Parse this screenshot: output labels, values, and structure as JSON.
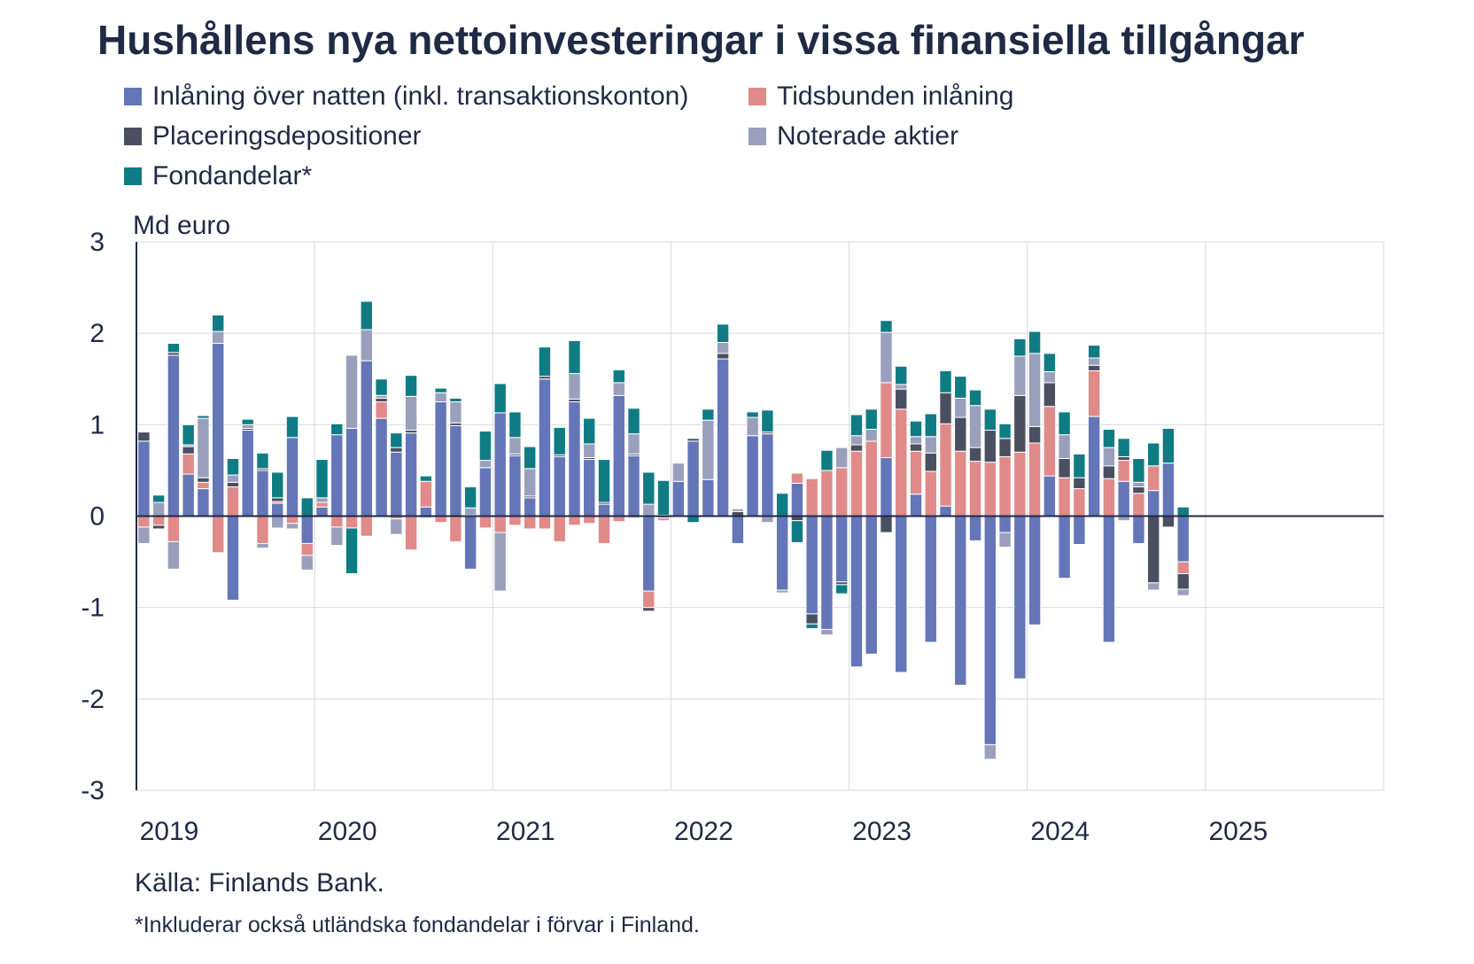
{
  "chart_data": {
    "type": "bar",
    "stacked": true,
    "title": "Hushållens nya nettoinvesteringar i vissa finansiella tillgångar",
    "ylabel": "Md euro",
    "ylim": [
      -3,
      3
    ],
    "yticks": [
      -3,
      -2,
      -1,
      0,
      1,
      2,
      3
    ],
    "xlim": [
      2019,
      2026
    ],
    "xticks": [
      "2019",
      "2020",
      "2021",
      "2022",
      "2023",
      "2024",
      "2025"
    ],
    "grid": true,
    "legend_position": "top",
    "source": "Källa: Finlands Bank.",
    "footnote": "*Inkluderar också utländska fondandelar i förvar i Finland.",
    "series": [
      {
        "name": "Inlåning över natten (inkl. transaktionskonton)",
        "color": "#6476b8"
      },
      {
        "name": "Tidsbunden inlåning",
        "color": "#e08a8a"
      },
      {
        "name": "Placeringsdepositioner",
        "color": "#4a5060"
      },
      {
        "name": "Noterade aktier",
        "color": "#9aa0bc"
      },
      {
        "name": "Fondandelar*",
        "color": "#0f7c84"
      }
    ],
    "x": [
      "2019-01",
      "2019-02",
      "2019-03",
      "2019-04",
      "2019-05",
      "2019-06",
      "2019-07",
      "2019-08",
      "2019-09",
      "2019-10",
      "2019-11",
      "2019-12",
      "2020-01",
      "2020-02",
      "2020-03",
      "2020-04",
      "2020-05",
      "2020-06",
      "2020-07",
      "2020-08",
      "2020-09",
      "2020-10",
      "2020-11",
      "2020-12",
      "2021-01",
      "2021-02",
      "2021-03",
      "2021-04",
      "2021-05",
      "2021-06",
      "2021-07",
      "2021-08",
      "2021-09",
      "2021-10",
      "2021-11",
      "2021-12",
      "2022-01",
      "2022-02",
      "2022-03",
      "2022-04",
      "2022-05",
      "2022-06",
      "2022-07",
      "2022-08",
      "2022-09",
      "2022-10",
      "2022-11",
      "2022-12",
      "2023-01",
      "2023-02",
      "2023-03",
      "2023-04",
      "2023-05",
      "2023-06",
      "2023-07",
      "2023-08",
      "2023-09",
      "2023-10",
      "2023-11",
      "2023-12",
      "2024-01",
      "2024-02",
      "2024-03",
      "2024-04",
      "2024-05",
      "2024-06",
      "2024-07",
      "2024-08",
      "2024-09",
      "2024-10",
      "2024-11",
      "2024-12"
    ],
    "values": [
      [
        0.82,
        -0.12,
        0.1,
        -0.18,
        0.0
      ],
      [
        0.0,
        -0.1,
        -0.04,
        0.15,
        0.08
      ],
      [
        1.76,
        -0.28,
        0.03,
        -0.3,
        0.1
      ],
      [
        0.46,
        0.22,
        0.08,
        0.02,
        0.22
      ],
      [
        0.3,
        0.07,
        0.05,
        0.65,
        0.03
      ],
      [
        1.89,
        -0.4,
        0.0,
        0.13,
        0.18
      ],
      [
        -0.92,
        0.32,
        0.05,
        0.08,
        0.18
      ],
      [
        0.94,
        0.0,
        0.02,
        0.04,
        0.06
      ],
      [
        0.5,
        -0.3,
        0.02,
        -0.05,
        0.17
      ],
      [
        0.14,
        0.02,
        0.04,
        -0.13,
        0.28
      ],
      [
        0.86,
        -0.08,
        0.0,
        -0.06,
        0.23
      ],
      [
        -0.3,
        -0.13,
        0.0,
        -0.16,
        0.2
      ],
      [
        0.1,
        0.05,
        0.0,
        0.05,
        0.42
      ],
      [
        0.89,
        -0.12,
        0.0,
        -0.2,
        0.12
      ],
      [
        0.96,
        -0.13,
        0.0,
        0.8,
        -0.5
      ],
      [
        1.7,
        -0.22,
        0.0,
        0.34,
        0.31
      ],
      [
        1.07,
        0.18,
        0.04,
        0.03,
        0.18
      ],
      [
        0.7,
        -0.03,
        0.05,
        -0.17,
        0.16
      ],
      [
        0.91,
        -0.37,
        0.03,
        0.37,
        0.23
      ],
      [
        0.1,
        0.28,
        0.0,
        -0.02,
        0.06
      ],
      [
        1.25,
        -0.07,
        0.0,
        0.1,
        0.05
      ],
      [
        0.99,
        -0.28,
        0.03,
        0.23,
        0.04
      ],
      [
        -0.58,
        0.01,
        0.0,
        0.08,
        0.23
      ],
      [
        0.53,
        -0.13,
        0.0,
        0.08,
        0.32
      ],
      [
        1.13,
        -0.18,
        0.0,
        -0.64,
        0.32
      ],
      [
        0.66,
        -0.1,
        0.02,
        0.18,
        0.28
      ],
      [
        0.2,
        -0.14,
        0.02,
        0.3,
        0.24
      ],
      [
        1.5,
        -0.14,
        0.03,
        0.0,
        0.32
      ],
      [
        0.65,
        -0.28,
        0.02,
        0.0,
        0.3
      ],
      [
        1.25,
        -0.1,
        0.03,
        0.28,
        0.36
      ],
      [
        0.62,
        -0.08,
        0.02,
        0.15,
        0.28
      ],
      [
        0.13,
        -0.3,
        0.02,
        -0.01,
        0.47
      ],
      [
        1.32,
        -0.06,
        0.0,
        0.14,
        0.14
      ],
      [
        0.66,
        -0.02,
        0.02,
        0.22,
        0.28
      ],
      [
        -0.82,
        -0.18,
        -0.04,
        0.13,
        0.35
      ],
      [
        -0.02,
        -0.03,
        0.0,
        0.01,
        0.38
      ],
      [
        0.38,
        0.0,
        0.0,
        0.2,
        0.0
      ],
      [
        0.82,
        0.0,
        0.03,
        0.0,
        -0.07
      ],
      [
        0.4,
        0.0,
        0.0,
        0.65,
        0.12
      ],
      [
        1.72,
        0.0,
        0.06,
        0.12,
        0.2
      ],
      [
        -0.3,
        0.0,
        0.05,
        0.03,
        0.0
      ],
      [
        0.88,
        0.0,
        0.0,
        0.2,
        0.06
      ],
      [
        0.9,
        0.0,
        0.02,
        -0.07,
        0.24
      ],
      [
        -0.81,
        0.0,
        0.0,
        -0.03,
        0.25
      ],
      [
        0.36,
        0.11,
        -0.05,
        0.0,
        -0.24
      ],
      [
        -1.07,
        0.41,
        -0.11,
        0.0,
        -0.05
      ],
      [
        -1.24,
        0.5,
        0.0,
        -0.06,
        0.22
      ],
      [
        -0.72,
        0.53,
        -0.03,
        0.22,
        -0.1
      ],
      [
        -1.65,
        0.71,
        0.07,
        0.1,
        0.23
      ],
      [
        -1.51,
        0.82,
        0.0,
        0.13,
        0.22
      ],
      [
        0.64,
        0.82,
        -0.18,
        0.55,
        0.13
      ],
      [
        -1.71,
        1.17,
        0.22,
        0.05,
        0.2
      ],
      [
        0.24,
        0.47,
        0.08,
        0.08,
        0.17
      ],
      [
        -1.38,
        0.49,
        0.2,
        0.18,
        0.25
      ],
      [
        0.11,
        0.9,
        0.34,
        0.0,
        0.24
      ],
      [
        -1.85,
        0.71,
        0.37,
        0.21,
        0.24
      ],
      [
        -0.27,
        0.6,
        0.15,
        0.46,
        0.17
      ],
      [
        -2.5,
        0.59,
        0.35,
        -0.16,
        0.23
      ],
      [
        -0.18,
        0.65,
        0.2,
        -0.16,
        0.16
      ],
      [
        -1.78,
        0.7,
        0.62,
        0.43,
        0.19
      ],
      [
        -1.19,
        0.8,
        0.18,
        0.8,
        0.24
      ],
      [
        0.44,
        0.76,
        0.26,
        0.12,
        0.2
      ],
      [
        -0.68,
        0.42,
        0.21,
        0.26,
        0.25
      ],
      [
        -0.31,
        0.3,
        0.12,
        0.0,
        0.26
      ],
      [
        1.09,
        0.5,
        0.06,
        0.08,
        0.14
      ],
      [
        -1.38,
        0.41,
        0.14,
        0.2,
        0.2
      ],
      [
        0.38,
        0.23,
        0.04,
        -0.05,
        0.2
      ],
      [
        -0.3,
        0.25,
        0.07,
        0.05,
        0.26
      ],
      [
        0.28,
        0.27,
        -0.73,
        -0.08,
        0.25
      ],
      [
        0.58,
        0.0,
        -0.12,
        0.0,
        0.38
      ],
      [
        -0.5,
        -0.13,
        -0.17,
        -0.07,
        0.1
      ],
      [
        0,
        0,
        0,
        0,
        0
      ]
    ]
  }
}
